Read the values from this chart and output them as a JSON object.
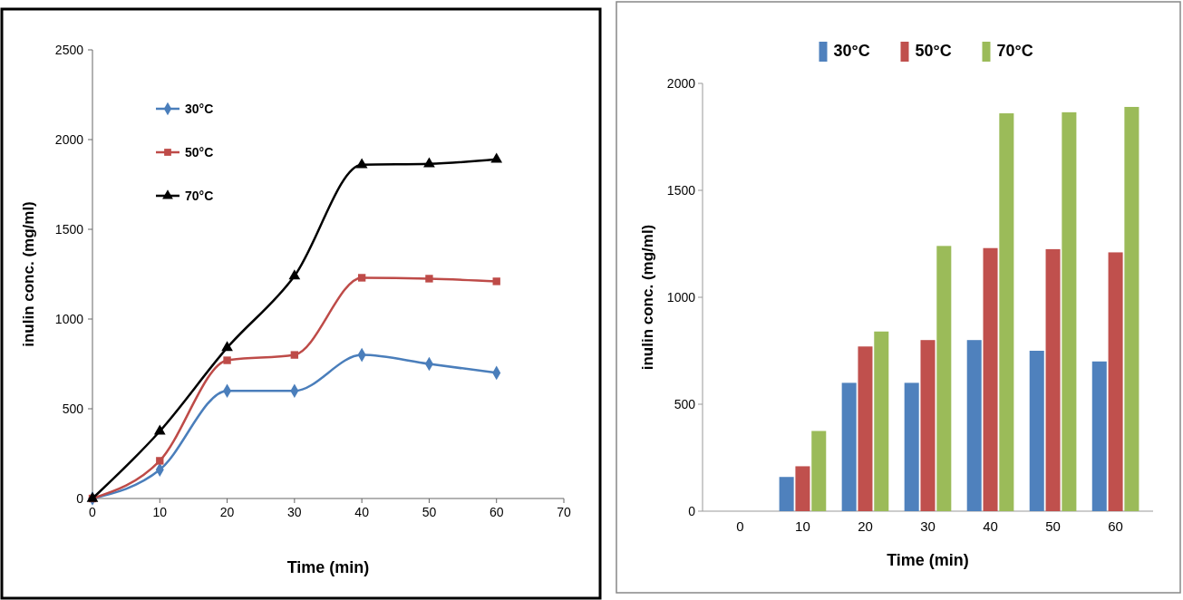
{
  "chart_data": [
    {
      "type": "line",
      "xlabel": "Time (min)",
      "ylabel": "inulin conc. (mg/ml)",
      "x": [
        0,
        10,
        20,
        30,
        40,
        50,
        60
      ],
      "xlim": [
        0,
        70
      ],
      "xticks": [
        0,
        10,
        20,
        30,
        40,
        50,
        60,
        70
      ],
      "ylim": [
        0,
        2500
      ],
      "yticks": [
        0,
        500,
        1000,
        1500,
        2000,
        2500
      ],
      "legend": "top left",
      "grid": false,
      "series": [
        {
          "name": "30°C",
          "color": "#4a7ebb",
          "marker": "diamond",
          "values": [
            0,
            160,
            600,
            600,
            800,
            750,
            700
          ]
        },
        {
          "name": "50°C",
          "color": "#be4b48",
          "marker": "square",
          "values": [
            0,
            210,
            770,
            800,
            1230,
            1225,
            1210
          ]
        },
        {
          "name": "70°C",
          "color": "#000000",
          "marker": "triangle",
          "values": [
            0,
            375,
            840,
            1240,
            1860,
            1865,
            1890
          ]
        }
      ]
    },
    {
      "type": "bar",
      "xlabel": "Time (min)",
      "ylabel": "inulin conc.  (mg/ml)",
      "categories": [
        "0",
        "10",
        "20",
        "30",
        "40",
        "50",
        "60"
      ],
      "ylim": [
        0,
        2000
      ],
      "yticks": [
        0,
        500,
        1000,
        1500,
        2000
      ],
      "legend": "top",
      "grid": false,
      "series": [
        {
          "name": "30°C",
          "color": "#4f81bd",
          "values": [
            0,
            160,
            600,
            600,
            800,
            750,
            700
          ]
        },
        {
          "name": "50°C",
          "color": "#c0504d",
          "values": [
            0,
            210,
            770,
            800,
            1230,
            1225,
            1210
          ]
        },
        {
          "name": "70°C",
          "color": "#9bbb59",
          "values": [
            0,
            375,
            840,
            1240,
            1860,
            1865,
            1890
          ]
        }
      ]
    }
  ]
}
